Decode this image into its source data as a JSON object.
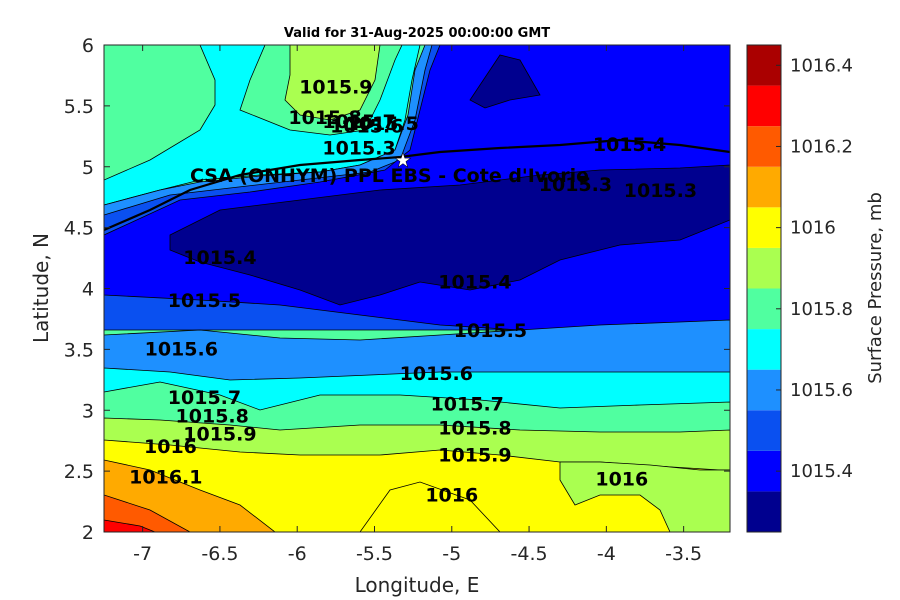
{
  "chart_data": {
    "type": "contour",
    "title": "Valid for 31-Aug-2025 00:00:00 GMT",
    "xlabel": "Longitude, E",
    "ylabel": "Latitude, N",
    "xlim": [
      -7.25,
      -3.2
    ],
    "ylim": [
      2,
      6
    ],
    "xticks": [
      "-7",
      "-6.5",
      "-6",
      "-5.5",
      "-5",
      "-4.5",
      "-4",
      "-3.5"
    ],
    "xtick_values": [
      -7,
      -6.5,
      -6,
      -5.5,
      -5,
      -4.5,
      -4,
      -3.5
    ],
    "yticks": [
      "2",
      "2.5",
      "3",
      "3.5",
      "4",
      "4.5",
      "5",
      "5.5",
      "6"
    ],
    "ytick_values": [
      2,
      2.5,
      3,
      3.5,
      4,
      4.5,
      5,
      5.5,
      6
    ],
    "grid": false,
    "colorbar": {
      "label": "Surface Pressure, mb",
      "ticks": [
        "1015.4",
        "1015.6",
        "1015.8",
        "1016",
        "1016.2",
        "1016.4"
      ],
      "tick_values": [
        1015.4,
        1015.6,
        1015.8,
        1016.0,
        1016.2,
        1016.4
      ],
      "levels": [
        1015.3,
        1015.4,
        1015.5,
        1015.6,
        1015.7,
        1015.8,
        1015.9,
        1016.0,
        1016.1,
        1016.2,
        1016.3,
        1016.4
      ],
      "colors": [
        "#00008f",
        "#0000ff",
        "#0a50f0",
        "#1e90ff",
        "#00ffff",
        "#50ffa0",
        "#aaff50",
        "#ffff00",
        "#ffaa00",
        "#ff5a00",
        "#ff0000",
        "#aa0000"
      ]
    },
    "station": {
      "name": "CSA (ONHYM) PPL EBS  - Cote d'Ivorie",
      "lon": -5.34,
      "lat": 5.06
    },
    "contour_labels": [
      {
        "text": "1015.9",
        "lon": -5.75,
        "lat": 5.6
      },
      {
        "text": "1015.8",
        "lon": -5.82,
        "lat": 5.35
      },
      {
        "text": "1015.7",
        "lon": -5.6,
        "lat": 5.32
      },
      {
        "text": "1015.6",
        "lon": -5.55,
        "lat": 5.28
      },
      {
        "text": "1015.5",
        "lon": -5.45,
        "lat": 5.3
      },
      {
        "text": "1015.3",
        "lon": -5.6,
        "lat": 5.1
      },
      {
        "text": "1015.4",
        "lon": -3.85,
        "lat": 5.13
      },
      {
        "text": "1015.3",
        "lon": -4.2,
        "lat": 4.8
      },
      {
        "text": "1015.3",
        "lon": -3.65,
        "lat": 4.75
      },
      {
        "text": "1015.4",
        "lon": -6.5,
        "lat": 4.2
      },
      {
        "text": "1015.4",
        "lon": -4.85,
        "lat": 4.0
      },
      {
        "text": "1015.5",
        "lon": -6.6,
        "lat": 3.85
      },
      {
        "text": "1015.5",
        "lon": -4.75,
        "lat": 3.6
      },
      {
        "text": "1015.6",
        "lon": -6.75,
        "lat": 3.45
      },
      {
        "text": "1015.6",
        "lon": -5.1,
        "lat": 3.25
      },
      {
        "text": "1015.7",
        "lon": -6.6,
        "lat": 3.05
      },
      {
        "text": "1015.7",
        "lon": -4.9,
        "lat": 3.0
      },
      {
        "text": "1015.8",
        "lon": -6.55,
        "lat": 2.9
      },
      {
        "text": "1015.8",
        "lon": -4.85,
        "lat": 2.8
      },
      {
        "text": "1015.9",
        "lon": -6.5,
        "lat": 2.75
      },
      {
        "text": "1015.9",
        "lon": -4.85,
        "lat": 2.58
      },
      {
        "text": "1016",
        "lon": -6.82,
        "lat": 2.65
      },
      {
        "text": "1016",
        "lon": -5.0,
        "lat": 2.25
      },
      {
        "text": "1016",
        "lon": -3.9,
        "lat": 2.38
      },
      {
        "text": "1016.1",
        "lon": -6.85,
        "lat": 2.4
      }
    ]
  }
}
